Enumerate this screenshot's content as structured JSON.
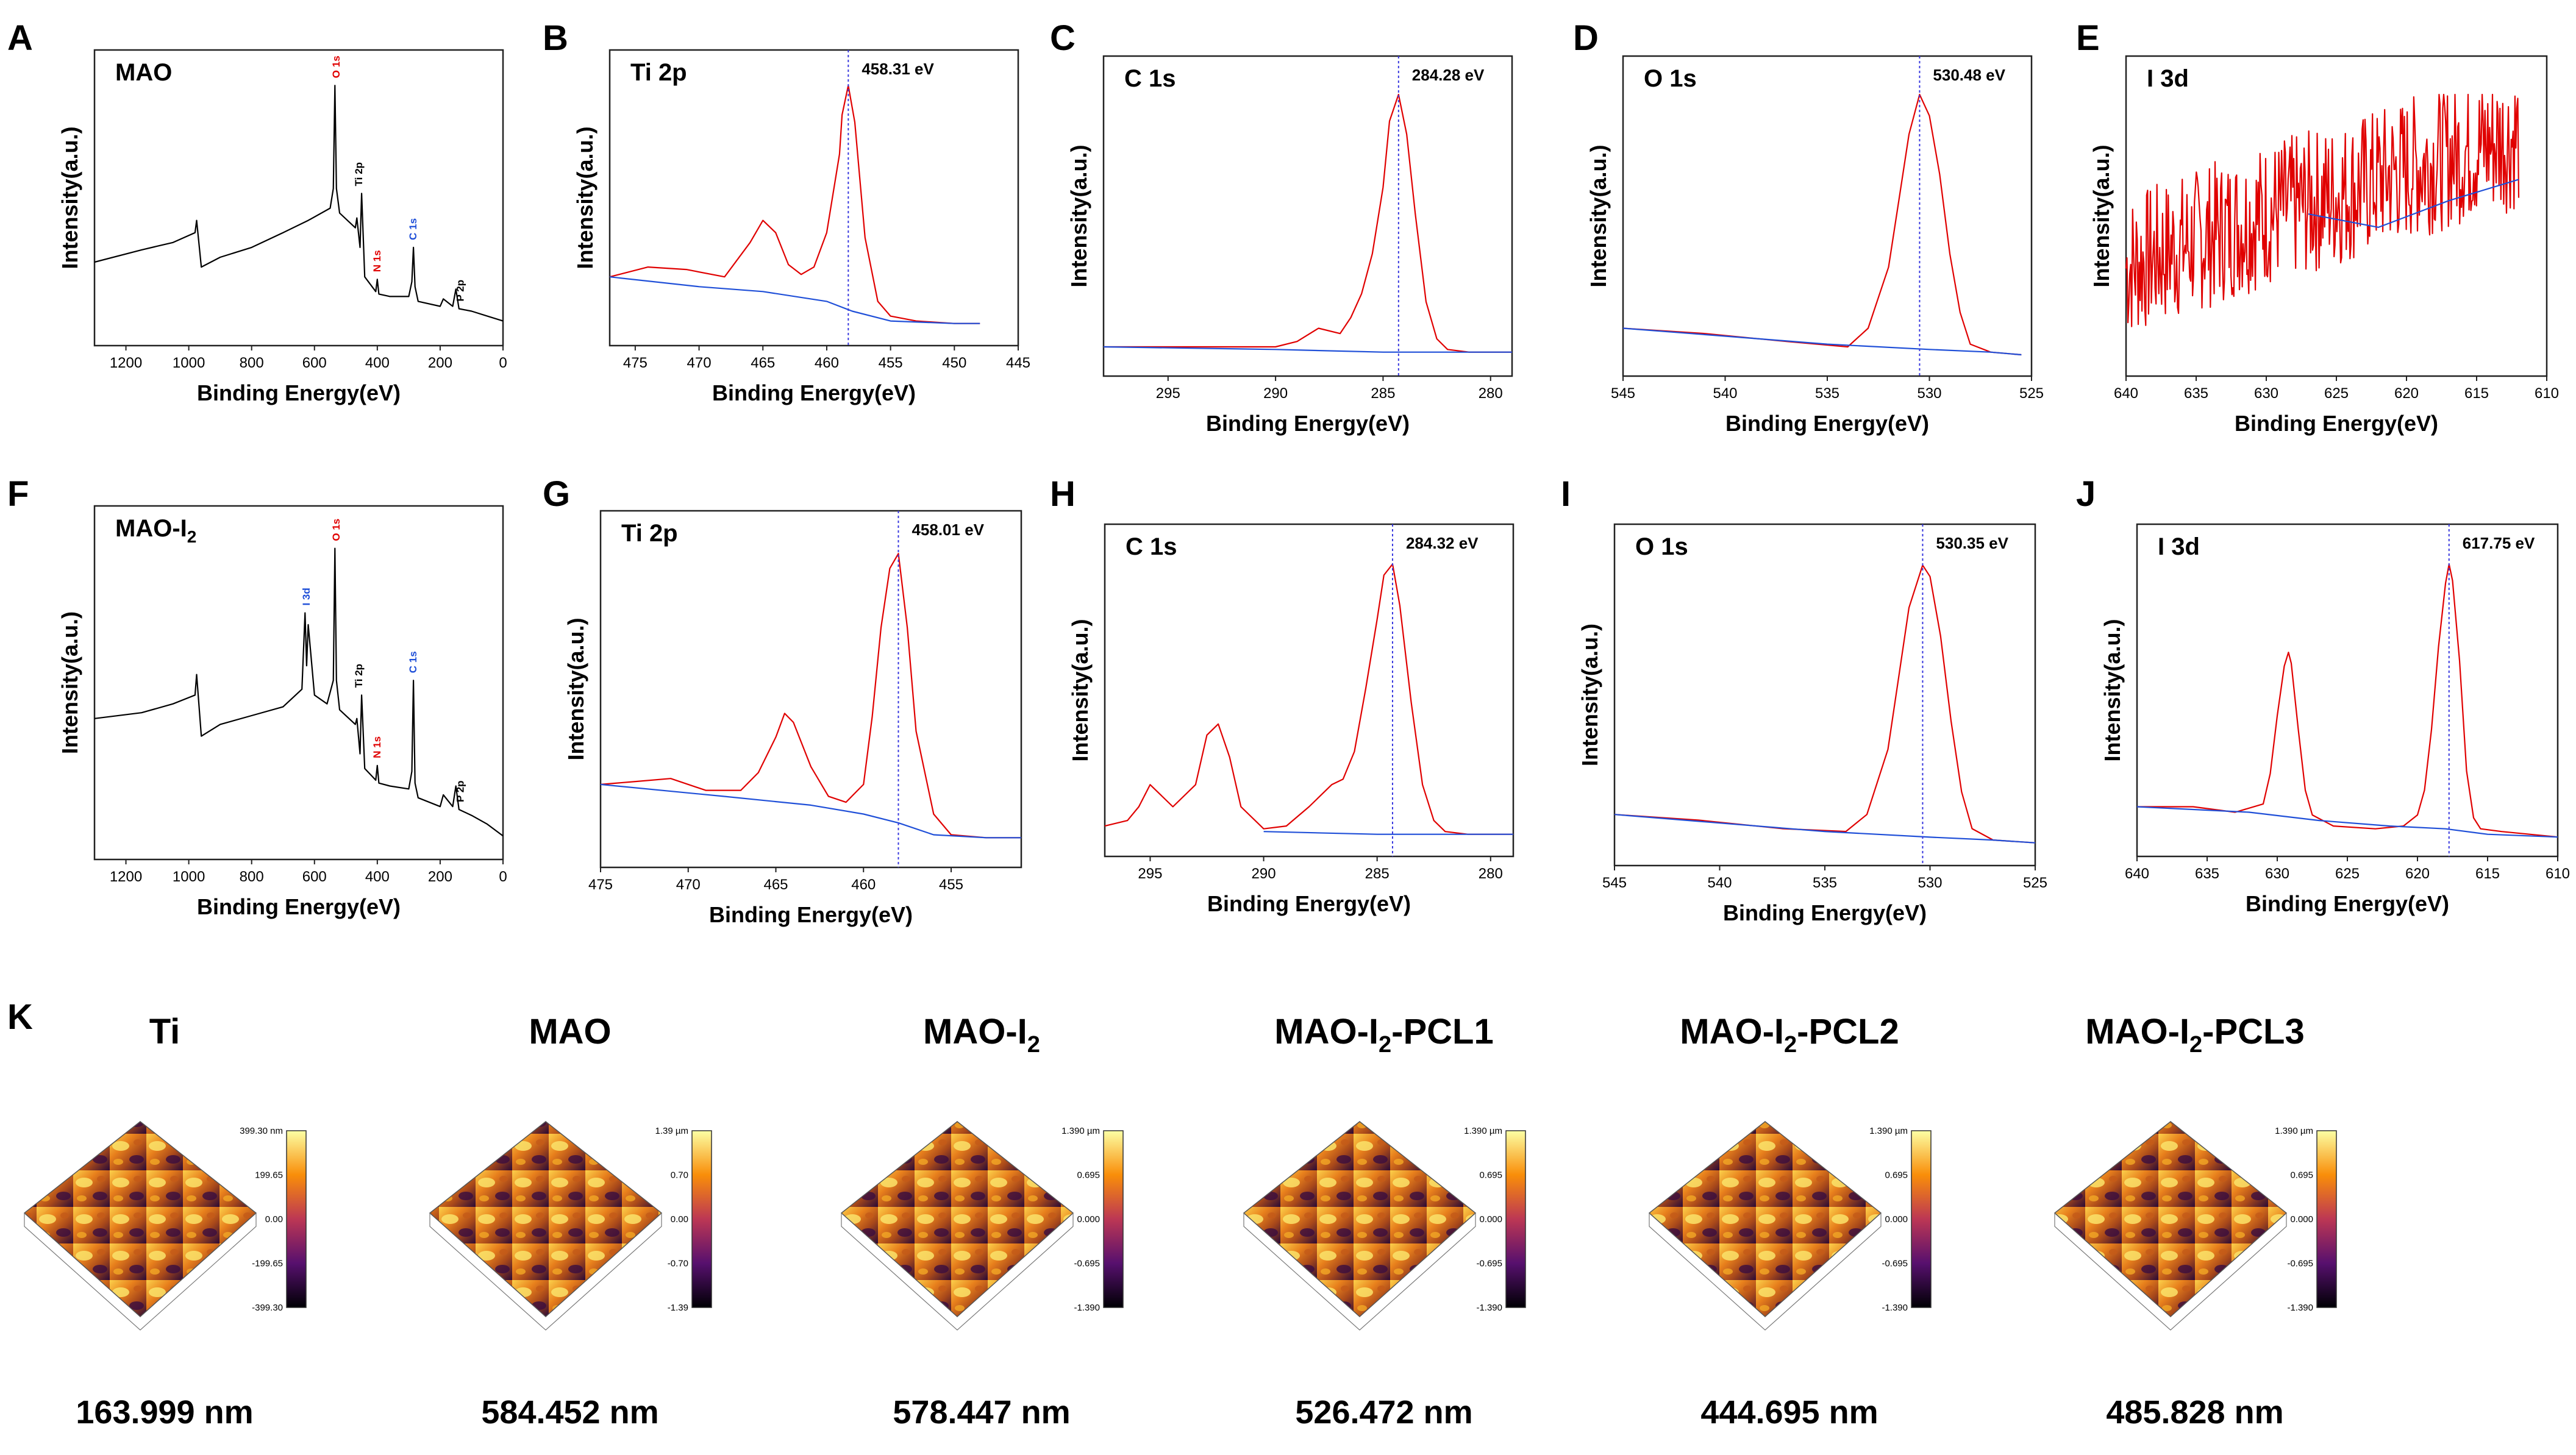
{
  "figure": {
    "section_k_letter": "K"
  },
  "chart_data": [
    {
      "id": "A",
      "type": "line",
      "panel_letter": "A",
      "sample_label": "MAO",
      "peak_label": "",
      "xlabel": "Binding Energy(eV)",
      "ylabel": "Intensity(a.u.)",
      "xlim": [
        1300,
        0
      ],
      "xticks": [
        1200,
        1000,
        800,
        600,
        400,
        200,
        0
      ],
      "ylim": [
        0,
        1
      ],
      "series": [
        {
          "name": "survey",
          "color": "#000000",
          "x": [
            1300,
            1150,
            1050,
            980,
            975,
            960,
            900,
            800,
            700,
            620,
            550,
            540,
            535,
            530,
            520,
            470,
            465,
            455,
            450,
            440,
            405,
            400,
            395,
            360,
            300,
            290,
            285,
            280,
            270,
            200,
            190,
            160,
            150,
            140,
            100,
            50,
            0
          ],
          "y": [
            0.28,
            0.33,
            0.36,
            0.4,
            0.45,
            0.26,
            0.3,
            0.34,
            0.4,
            0.45,
            0.5,
            0.58,
            1.0,
            0.58,
            0.48,
            0.42,
            0.46,
            0.34,
            0.56,
            0.22,
            0.16,
            0.21,
            0.15,
            0.14,
            0.14,
            0.2,
            0.34,
            0.18,
            0.12,
            0.1,
            0.13,
            0.1,
            0.17,
            0.09,
            0.08,
            0.06,
            0.04
          ]
        }
      ],
      "annotations": [
        {
          "text": "O 1s",
          "x": 530,
          "color": "#e00000"
        },
        {
          "text": "Ti 2p",
          "x": 458,
          "color": "#000000"
        },
        {
          "text": "N 1s",
          "x": 400,
          "color": "#e00000"
        },
        {
          "text": "C 1s",
          "x": 285,
          "color": "#1f4fd8"
        },
        {
          "text": "P 2p",
          "x": 135,
          "color": "#000000"
        }
      ]
    },
    {
      "id": "B",
      "type": "line",
      "panel_letter": "B",
      "sample_label": "Ti 2p",
      "peak_label": "458.31 eV",
      "peak_x": 458.31,
      "xlabel": "Binding Energy(eV)",
      "ylabel": "Intensity(a.u.)",
      "xlim": [
        477,
        445
      ],
      "xticks": [
        475,
        470,
        465,
        460,
        455,
        450,
        445
      ],
      "ylim": [
        0,
        1
      ],
      "series": [
        {
          "name": "spectrum",
          "color": "#e00000",
          "x": [
            477,
            474,
            471,
            468,
            466,
            465,
            464,
            463,
            462,
            461,
            460,
            459,
            458.8,
            458.31,
            457.8,
            457,
            456,
            455,
            453,
            450,
            448
          ],
          "y": [
            0.22,
            0.26,
            0.25,
            0.22,
            0.36,
            0.45,
            0.4,
            0.27,
            0.23,
            0.26,
            0.4,
            0.72,
            0.88,
            1.0,
            0.85,
            0.38,
            0.12,
            0.06,
            0.04,
            0.03,
            0.03
          ]
        },
        {
          "name": "background",
          "color": "#1f4fd8",
          "x": [
            477,
            470,
            465,
            460,
            458,
            455,
            450,
            448
          ],
          "y": [
            0.22,
            0.18,
            0.16,
            0.12,
            0.08,
            0.04,
            0.03,
            0.03
          ]
        }
      ]
    },
    {
      "id": "C",
      "type": "line",
      "panel_letter": "C",
      "sample_label": "C 1s",
      "peak_label": "284.28 eV",
      "peak_x": 284.28,
      "xlabel": "Binding Energy(eV)",
      "ylabel": "Intensity(a.u.)",
      "xlim": [
        298,
        279
      ],
      "xticks": [
        295,
        290,
        285,
        280
      ],
      "ylim": [
        0,
        1
      ],
      "series": [
        {
          "name": "spectrum",
          "color": "#e00000",
          "x": [
            298,
            295,
            292,
            290,
            289,
            288,
            287,
            286.5,
            286,
            285.5,
            285,
            284.7,
            284.28,
            283.9,
            283.5,
            283,
            282.5,
            282,
            281,
            280,
            279
          ],
          "y": [
            0.05,
            0.05,
            0.05,
            0.05,
            0.07,
            0.12,
            0.1,
            0.16,
            0.25,
            0.4,
            0.65,
            0.9,
            1.0,
            0.85,
            0.55,
            0.22,
            0.08,
            0.04,
            0.03,
            0.03,
            0.03
          ]
        },
        {
          "name": "background",
          "color": "#1f4fd8",
          "x": [
            298,
            290,
            285,
            280,
            279
          ],
          "y": [
            0.05,
            0.04,
            0.03,
            0.03,
            0.03
          ]
        }
      ]
    },
    {
      "id": "D",
      "type": "line",
      "panel_letter": "D",
      "sample_label": "O 1s",
      "peak_label": "530.48 eV",
      "peak_x": 530.48,
      "xlabel": "Binding Energy(eV)",
      "ylabel": "Intensity(a.u.)",
      "xlim": [
        545,
        525
      ],
      "xticks": [
        545,
        540,
        535,
        530,
        525
      ],
      "ylim": [
        0,
        1
      ],
      "series": [
        {
          "name": "spectrum",
          "color": "#e00000",
          "x": [
            545,
            541,
            537,
            534,
            533,
            532,
            531.5,
            531,
            530.48,
            530,
            529.5,
            529,
            528.5,
            528,
            527,
            525.5
          ],
          "y": [
            0.12,
            0.1,
            0.07,
            0.05,
            0.12,
            0.35,
            0.6,
            0.85,
            1.0,
            0.92,
            0.7,
            0.4,
            0.18,
            0.06,
            0.03,
            0.02
          ]
        },
        {
          "name": "background",
          "color": "#1f4fd8",
          "x": [
            545,
            540,
            535,
            530,
            527,
            525.5
          ],
          "y": [
            0.12,
            0.09,
            0.06,
            0.04,
            0.03,
            0.02
          ]
        }
      ]
    },
    {
      "id": "E",
      "type": "line",
      "panel_letter": "E",
      "sample_label": "I 3d",
      "peak_label": "",
      "xlabel": "Binding Energy(eV)",
      "ylabel": "Intensity(a.u.)",
      "xlim": [
        640,
        610
      ],
      "xticks": [
        640,
        635,
        630,
        625,
        620,
        615,
        610
      ],
      "ylim": [
        0,
        1
      ],
      "series": [
        {
          "name": "noisy_signal",
          "color": "#e00000",
          "noise": true,
          "x": [
            640,
            635,
            630,
            625,
            620,
            615,
            612
          ],
          "y": [
            0.35,
            0.45,
            0.55,
            0.62,
            0.72,
            0.8,
            0.84
          ]
        },
        {
          "name": "background",
          "color": "#1f4fd8",
          "x": [
            627,
            622,
            617,
            612
          ],
          "y": [
            0.55,
            0.5,
            0.6,
            0.68
          ]
        }
      ]
    },
    {
      "id": "F",
      "type": "line",
      "panel_letter": "F",
      "sample_label": "MAO-I",
      "sample_label_sub": "2",
      "peak_label": "",
      "xlabel": "Binding Energy(eV)",
      "ylabel": "Intensity(a.u.)",
      "xlim": [
        1300,
        0
      ],
      "xticks": [
        1200,
        1000,
        800,
        600,
        400,
        200,
        0
      ],
      "ylim": [
        0,
        1
      ],
      "series": [
        {
          "name": "survey",
          "color": "#000000",
          "x": [
            1300,
            1150,
            1050,
            980,
            975,
            960,
            900,
            800,
            700,
            640,
            630,
            625,
            620,
            600,
            560,
            540,
            535,
            530,
            520,
            470,
            465,
            455,
            450,
            440,
            405,
            400,
            395,
            360,
            300,
            290,
            285,
            280,
            270,
            200,
            190,
            160,
            150,
            140,
            100,
            50,
            0
          ],
          "y": [
            0.42,
            0.44,
            0.47,
            0.5,
            0.57,
            0.36,
            0.4,
            0.43,
            0.46,
            0.52,
            0.78,
            0.6,
            0.74,
            0.5,
            0.47,
            0.55,
            1.0,
            0.55,
            0.45,
            0.4,
            0.42,
            0.3,
            0.5,
            0.25,
            0.21,
            0.26,
            0.2,
            0.19,
            0.18,
            0.24,
            0.55,
            0.2,
            0.15,
            0.12,
            0.16,
            0.12,
            0.19,
            0.11,
            0.09,
            0.06,
            0.02
          ]
        }
      ],
      "annotations": [
        {
          "text": "I 3d",
          "x": 625,
          "color": "#1f4fd8"
        },
        {
          "text": "O 1s",
          "x": 530,
          "color": "#e00000"
        },
        {
          "text": "Ti 2p",
          "x": 458,
          "color": "#000000"
        },
        {
          "text": "N 1s",
          "x": 400,
          "color": "#e00000"
        },
        {
          "text": "C 1s",
          "x": 285,
          "color": "#1f4fd8"
        },
        {
          "text": "P 2p",
          "x": 135,
          "color": "#000000"
        }
      ]
    },
    {
      "id": "G",
      "type": "line",
      "panel_letter": "G",
      "sample_label": "Ti 2p",
      "peak_label": "458.01 eV",
      "peak_x": 458.01,
      "xlabel": "Binding Energy(eV)",
      "ylabel": "Intensity(a.u.)",
      "xlim": [
        475,
        451
      ],
      "xticks": [
        475,
        470,
        465,
        460,
        455
      ],
      "ylim": [
        0,
        1
      ],
      "series": [
        {
          "name": "spectrum",
          "color": "#e00000",
          "x": [
            475,
            473,
            471,
            469,
            467,
            466,
            465,
            464.5,
            464,
            463,
            462,
            461,
            460,
            459.5,
            459,
            458.5,
            458.01,
            457.5,
            457,
            456,
            455,
            453,
            451
          ],
          "y": [
            0.22,
            0.23,
            0.24,
            0.2,
            0.2,
            0.26,
            0.38,
            0.46,
            0.43,
            0.28,
            0.18,
            0.16,
            0.22,
            0.45,
            0.75,
            0.95,
            1.0,
            0.75,
            0.4,
            0.12,
            0.05,
            0.04,
            0.04
          ]
        },
        {
          "name": "background",
          "color": "#1f4fd8",
          "x": [
            475,
            468,
            463,
            460,
            458,
            456,
            453,
            451
          ],
          "y": [
            0.22,
            0.18,
            0.15,
            0.12,
            0.09,
            0.05,
            0.04,
            0.04
          ]
        }
      ]
    },
    {
      "id": "H",
      "type": "line",
      "panel_letter": "H",
      "sample_label": "C 1s",
      "peak_label": "284.32 eV",
      "peak_x": 284.32,
      "xlabel": "Binding Energy(eV)",
      "ylabel": "Intensity(a.u.)",
      "xlim": [
        297,
        279
      ],
      "xticks": [
        295,
        290,
        285,
        280
      ],
      "ylim": [
        0,
        1
      ],
      "series": [
        {
          "name": "spectrum",
          "color": "#e00000",
          "x": [
            297,
            296,
            295.5,
            295,
            294,
            293,
            292.5,
            292,
            291.5,
            291,
            290,
            289,
            288,
            287,
            286.5,
            286,
            285.5,
            285,
            284.7,
            284.32,
            284,
            283.5,
            283,
            282.5,
            282,
            281,
            280,
            279
          ],
          "y": [
            0.05,
            0.07,
            0.12,
            0.2,
            0.12,
            0.2,
            0.38,
            0.42,
            0.3,
            0.12,
            0.04,
            0.05,
            0.12,
            0.2,
            0.22,
            0.32,
            0.55,
            0.8,
            0.96,
            1.0,
            0.85,
            0.5,
            0.2,
            0.07,
            0.03,
            0.02,
            0.02,
            0.02
          ]
        },
        {
          "name": "background",
          "color": "#1f4fd8",
          "x": [
            290,
            285,
            280,
            279
          ],
          "y": [
            0.03,
            0.02,
            0.02,
            0.02
          ]
        }
      ]
    },
    {
      "id": "I",
      "type": "line",
      "panel_letter": "I",
      "sample_label": "O 1s",
      "peak_label": "530.35 eV",
      "peak_x": 530.35,
      "xlabel": "Binding Energy(eV)",
      "ylabel": "Intensity(a.u.)",
      "xlim": [
        545,
        525
      ],
      "xticks": [
        545,
        540,
        535,
        530,
        525
      ],
      "ylim": [
        0,
        1
      ],
      "series": [
        {
          "name": "spectrum",
          "color": "#e00000",
          "x": [
            545,
            541,
            537,
            534,
            533,
            532,
            531.5,
            531,
            530.35,
            530,
            529.5,
            529,
            528.5,
            528,
            527,
            525
          ],
          "y": [
            0.12,
            0.1,
            0.07,
            0.06,
            0.12,
            0.35,
            0.6,
            0.85,
            1.0,
            0.96,
            0.75,
            0.45,
            0.2,
            0.07,
            0.03,
            0.02
          ]
        },
        {
          "name": "background",
          "color": "#1f4fd8",
          "x": [
            545,
            540,
            535,
            530,
            527,
            525
          ],
          "y": [
            0.12,
            0.09,
            0.06,
            0.04,
            0.03,
            0.02
          ]
        }
      ]
    },
    {
      "id": "J",
      "type": "line",
      "panel_letter": "J",
      "sample_label": "I 3d",
      "peak_label": "617.75 eV",
      "peak_x": 617.75,
      "xlabel": "Binding Energy(eV)",
      "ylabel": "Intensity(a.u.)",
      "xlim": [
        640,
        610
      ],
      "xticks": [
        640,
        635,
        630,
        625,
        620,
        615,
        610
      ],
      "ylim": [
        0,
        1
      ],
      "series": [
        {
          "name": "spectrum",
          "color": "#e00000",
          "x": [
            640,
            636,
            633,
            631,
            630.5,
            630,
            629.5,
            629.2,
            629,
            628.5,
            628,
            627.5,
            626,
            623,
            621,
            620,
            619.5,
            619,
            618.5,
            618,
            617.75,
            617.5,
            617,
            616.5,
            616,
            615.5,
            614,
            612,
            610
          ],
          "y": [
            0.12,
            0.12,
            0.1,
            0.13,
            0.24,
            0.45,
            0.63,
            0.68,
            0.64,
            0.4,
            0.18,
            0.09,
            0.05,
            0.04,
            0.05,
            0.09,
            0.18,
            0.4,
            0.7,
            0.93,
            1.0,
            0.94,
            0.65,
            0.25,
            0.08,
            0.04,
            0.03,
            0.02,
            0.01
          ]
        },
        {
          "name": "background",
          "color": "#1f4fd8",
          "x": [
            640,
            632,
            627,
            622,
            618,
            615,
            610
          ],
          "y": [
            0.12,
            0.1,
            0.07,
            0.05,
            0.04,
            0.02,
            0.01
          ]
        }
      ]
    }
  ],
  "afm": [
    {
      "title": "Ti",
      "title_sub": "",
      "roughness": "163.999 nm",
      "colorbar_ticks": [
        "399.30 nm",
        "199.65",
        "0.00",
        "-199.65",
        "-399.30"
      ]
    },
    {
      "title": "MAO",
      "title_sub": "",
      "roughness": "584.452 nm",
      "colorbar_ticks": [
        "1.39 µm",
        "0.70",
        "0.00",
        "-0.70",
        "-1.39"
      ]
    },
    {
      "title": "MAO-I",
      "title_sub": "2",
      "title_rest": "",
      "roughness": "578.447 nm",
      "colorbar_ticks": [
        "1.390 µm",
        "0.695",
        "0.000",
        "-0.695",
        "-1.390"
      ]
    },
    {
      "title": "MAO-I",
      "title_sub": "2",
      "title_rest": "-PCL1",
      "roughness": "526.472 nm",
      "colorbar_ticks": [
        "1.390 µm",
        "0.695",
        "0.000",
        "-0.695",
        "-1.390"
      ]
    },
    {
      "title": "MAO-I",
      "title_sub": "2",
      "title_rest": "-PCL2",
      "roughness": "444.695 nm",
      "colorbar_ticks": [
        "1.390 µm",
        "0.695",
        "0.000",
        "-0.695",
        "-1.390"
      ]
    },
    {
      "title": "MAO-I",
      "title_sub": "2",
      "title_rest": "-PCL3",
      "roughness": "485.828 nm",
      "colorbar_ticks": [
        "1.390 µm",
        "0.695",
        "0.000",
        "-0.695",
        "-1.390"
      ]
    }
  ]
}
